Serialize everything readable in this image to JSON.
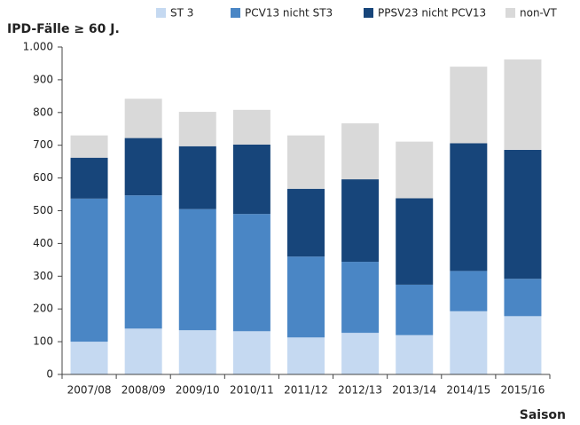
{
  "chart_data": {
    "type": "stacked_bar",
    "title": "IPD-Fälle ≥ 60 J.",
    "x_label": "Saison",
    "categories": [
      "2007/08",
      "2008/09",
      "2009/10",
      "2010/11",
      "2011/12",
      "2012/13",
      "2013/14",
      "2014/15",
      "2015/16"
    ],
    "series": [
      {
        "name": "ST 3",
        "color": "#c5d9f1",
        "values": [
          100,
          140,
          135,
          132,
          113,
          127,
          120,
          193,
          178
        ]
      },
      {
        "name": "PCV13 nicht ST3",
        "color": "#4a86c5",
        "values": [
          437,
          407,
          370,
          358,
          247,
          217,
          154,
          123,
          114
        ]
      },
      {
        "name": "PPSV23 nicht PCV13",
        "color": "#17457a",
        "values": [
          125,
          175,
          192,
          212,
          207,
          252,
          264,
          390,
          394
        ]
      },
      {
        "name": "non-VT",
        "color": "#d9d9d9",
        "values": [
          68,
          120,
          105,
          106,
          163,
          171,
          173,
          234,
          276
        ]
      }
    ],
    "ylim": [
      0,
      1000
    ],
    "yticks": [
      0,
      100,
      200,
      300,
      400,
      500,
      600,
      700,
      800,
      900,
      {
        "value": 1000,
        "label": "1.000"
      }
    ],
    "legend": "top"
  }
}
